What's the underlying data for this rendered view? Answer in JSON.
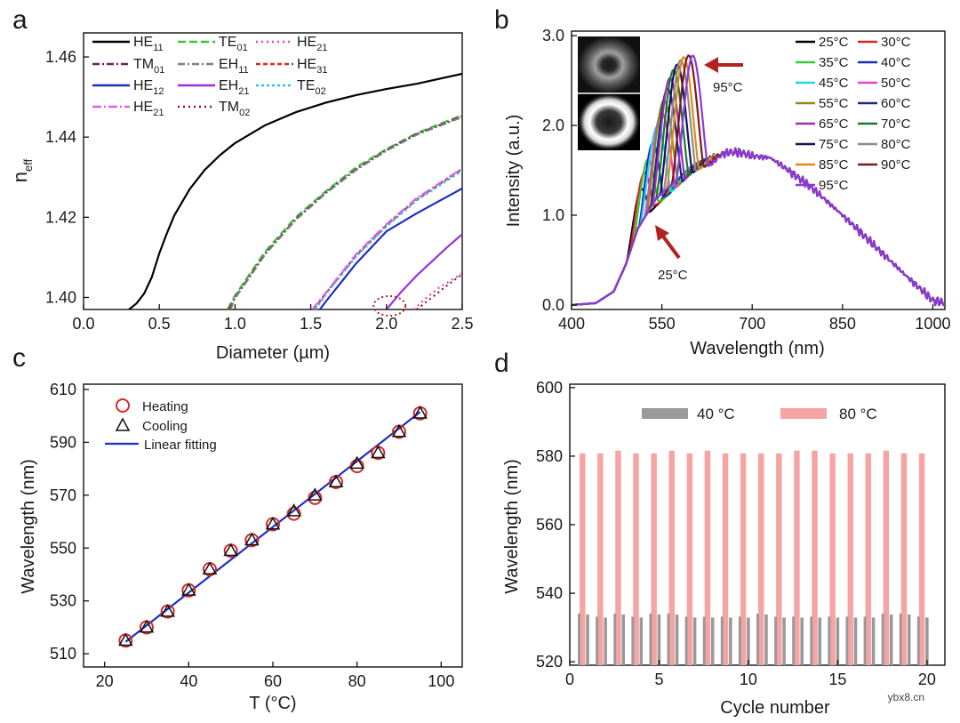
{
  "watermark": "ybx8.cn",
  "chart_data": [
    {
      "panel": "a",
      "type": "line",
      "xlabel": "Diameter (µm)",
      "ylabel_main": "n",
      "ylabel_sub": "eff",
      "xlim": [
        0.0,
        2.5
      ],
      "ylim": [
        1.397,
        1.466
      ],
      "xticks": [
        0.0,
        0.5,
        1.0,
        1.5,
        2.0,
        2.5
      ],
      "xtick_labels": [
        "0.0",
        "0.5",
        "1.0",
        "1.5",
        "2.0",
        "2.5"
      ],
      "yticks": [
        1.4,
        1.42,
        1.44,
        1.46
      ],
      "ytick_labels": [
        "1.40",
        "1.42",
        "1.44",
        "1.46"
      ],
      "annotation": "dotted red circle marking the EH21 cutoff near 2.0 µm",
      "series": [
        {
          "name": "HE",
          "sub": "11",
          "color": "#000000",
          "dash": "",
          "x": [
            0.3,
            0.35,
            0.4,
            0.45,
            0.5,
            0.55,
            0.6,
            0.7,
            0.8,
            0.9,
            1.0,
            1.2,
            1.4,
            1.6,
            1.8,
            2.0,
            2.2,
            2.5
          ],
          "y": [
            1.397,
            1.3985,
            1.401,
            1.405,
            1.411,
            1.416,
            1.4205,
            1.427,
            1.4318,
            1.4355,
            1.4385,
            1.443,
            1.4462,
            1.4486,
            1.4505,
            1.452,
            1.4533,
            1.4558
          ]
        },
        {
          "name": "TE",
          "sub": "01",
          "color": "#33cc33",
          "dash": "9,4",
          "x": [
            0.95,
            1.0,
            1.1,
            1.2,
            1.4,
            1.6,
            1.8,
            2.0,
            2.2,
            2.5
          ],
          "y": [
            1.397,
            1.4005,
            1.406,
            1.4115,
            1.42,
            1.4265,
            1.4325,
            1.437,
            1.441,
            1.4455
          ]
        },
        {
          "name": "HE",
          "sub": "21",
          "color": "#e040e0",
          "dash": "2,4",
          "x": [
            2.18,
            2.25,
            2.35,
            2.5
          ],
          "y": [
            1.397,
            1.3995,
            1.4025,
            1.406
          ]
        },
        {
          "name": "TM",
          "sub": "01",
          "color": "#7a1f5c",
          "dash": "8,3,2,3",
          "x": [
            0.96,
            1.0,
            1.1,
            1.2,
            1.4,
            1.6,
            1.8,
            2.0,
            2.2,
            2.5
          ],
          "y": [
            1.397,
            1.4,
            1.4055,
            1.411,
            1.4195,
            1.4262,
            1.432,
            1.4368,
            1.4408,
            1.4452
          ]
        },
        {
          "name": "EH",
          "sub": "11",
          "color": "#808080",
          "dash": "8,3,2,3",
          "x": [
            0.97,
            1.0,
            1.1,
            1.2,
            1.4,
            1.6,
            1.8,
            2.0,
            2.2,
            2.5
          ],
          "y": [
            1.397,
            1.3998,
            1.4052,
            1.4108,
            1.4193,
            1.426,
            1.4318,
            1.4366,
            1.4406,
            1.445
          ]
        },
        {
          "name": "HE",
          "sub": "31",
          "color": "#d22a2a",
          "dash": "5,3",
          "x": [
            1.52,
            1.6,
            1.8,
            2.0,
            2.2,
            2.5
          ],
          "y": [
            1.397,
            1.401,
            1.4105,
            1.418,
            1.4245,
            1.432
          ]
        },
        {
          "name": "HE",
          "sub": "12",
          "color": "#1c2fbf",
          "dash": "",
          "x": [
            1.56,
            1.6,
            1.8,
            2.0,
            2.2,
            2.5
          ],
          "y": [
            1.397,
            1.399,
            1.4085,
            1.4165,
            1.421,
            1.4272
          ]
        },
        {
          "name": "EH",
          "sub": "21",
          "color": "#9b30d9",
          "dash": "",
          "x": [
            2.0,
            2.1,
            2.2,
            2.3,
            2.4,
            2.5
          ],
          "y": [
            1.397,
            1.4015,
            1.4055,
            1.409,
            1.4125,
            1.4158
          ]
        },
        {
          "name": "TE",
          "sub": "02",
          "color": "#22c8f0",
          "dash": "3,3",
          "x": [
            1.53,
            1.6,
            1.8,
            2.0,
            2.2,
            2.5
          ],
          "y": [
            1.397,
            1.4008,
            1.4102,
            1.4177,
            1.4242,
            1.4316
          ]
        },
        {
          "name": "HE",
          "sub": "21",
          "color": "#e060e0",
          "dash": "10,3,2,3",
          "x": [
            1.51,
            1.6,
            1.8,
            2.0,
            2.2,
            2.5
          ],
          "y": [
            1.397,
            1.4012,
            1.4108,
            1.4183,
            1.4248,
            1.4322
          ]
        },
        {
          "name": "TM",
          "sub": "02",
          "color": "#8b1a1a",
          "dash": "2,4",
          "x": [
            2.2,
            2.3,
            2.4,
            2.5
          ],
          "y": [
            1.397,
            1.4,
            1.403,
            1.4058
          ]
        }
      ]
    },
    {
      "panel": "b",
      "type": "line",
      "xlabel": "Wavelength (nm)",
      "ylabel": "Intensity (a.u.)",
      "xlim": [
        400,
        1020
      ],
      "ylim": [
        -0.05,
        3.05
      ],
      "xticks": [
        400,
        550,
        700,
        850,
        1000
      ],
      "xtick_labels": [
        "400",
        "550",
        "700",
        "850",
        "1000"
      ],
      "yticks": [
        0,
        1,
        2,
        3
      ],
      "ytick_labels": [
        "0.0",
        "1.0",
        "2.0",
        "3.0"
      ],
      "annotation_top": "95°C",
      "annotation_bottom": "25°C",
      "temperatures": [
        25,
        30,
        35,
        40,
        45,
        50,
        55,
        60,
        65,
        70,
        75,
        80,
        85,
        90,
        95
      ],
      "legend_labels": [
        "25°C",
        "30°C",
        "35°C",
        "40°C",
        "45°C",
        "50°C",
        "55°C",
        "60°C",
        "65°C",
        "70°C",
        "75°C",
        "80°C",
        "85°C",
        "90°C",
        "95°C"
      ],
      "colors": [
        "#000000",
        "#d42a2a",
        "#33cc33",
        "#1c2fbf",
        "#22d8e8",
        "#e040e0",
        "#8c8c1a",
        "#1a2a80",
        "#9b30b0",
        "#1a7a2a",
        "#14145a",
        "#8c8c8c",
        "#e08a1a",
        "#7a1a1a",
        "#8a3ad9"
      ],
      "peak_wavelengths": [
        515,
        520,
        526,
        534,
        542,
        549,
        553,
        559,
        563,
        569,
        575,
        581,
        586,
        594,
        601
      ],
      "peak_intensities": [
        1.29,
        1.47,
        1.62,
        1.8,
        1.99,
        2.14,
        2.28,
        2.41,
        2.53,
        2.62,
        2.68,
        2.73,
        2.76,
        2.78,
        2.78
      ],
      "baseline_x": [
        400,
        440,
        470,
        490,
        510,
        540,
        600,
        620,
        660,
        680,
        700,
        730,
        760,
        800,
        850,
        900,
        950,
        1000,
        1020
      ],
      "baseline_y": [
        0.0,
        0.02,
        0.15,
        0.45,
        0.85,
        1.18,
        1.55,
        1.62,
        1.7,
        1.7,
        1.66,
        1.64,
        1.5,
        1.3,
        1.0,
        0.68,
        0.36,
        0.05,
        0.02
      ]
    },
    {
      "panel": "c",
      "type": "scatter",
      "xlabel": "T (°C)",
      "ylabel": "Wavelength (nm)",
      "xlim": [
        15,
        105
      ],
      "ylim": [
        505,
        612
      ],
      "xticks": [
        20,
        40,
        60,
        80,
        100
      ],
      "xtick_labels": [
        "20",
        "40",
        "60",
        "80",
        "100"
      ],
      "yticks": [
        510,
        530,
        550,
        570,
        590,
        610
      ],
      "ytick_labels": [
        "510",
        "530",
        "550",
        "570",
        "590",
        "610"
      ],
      "legend_labels": [
        "Heating",
        "Cooling",
        "Linear fitting"
      ],
      "x": [
        25,
        30,
        35,
        40,
        45,
        50,
        55,
        60,
        65,
        70,
        75,
        80,
        85,
        90,
        95
      ],
      "series": [
        {
          "name": "Heating",
          "values": [
            515,
            520,
            526,
            534,
            542,
            549,
            553,
            559,
            563,
            569,
            575,
            581,
            586,
            594,
            601
          ]
        },
        {
          "name": "Cooling",
          "values": [
            515,
            520,
            526,
            534,
            542,
            549,
            553,
            559,
            564,
            570,
            575,
            582,
            586,
            594,
            601
          ]
        }
      ],
      "fit": {
        "name": "Linear fitting",
        "x": [
          25,
          95
        ],
        "y": [
          514.5,
          601.5
        ]
      }
    },
    {
      "panel": "d",
      "type": "bar",
      "xlabel": "Cycle number",
      "ylabel": "Wavelength (nm)",
      "xlim": [
        0,
        21
      ],
      "ylim": [
        519,
        601
      ],
      "xticks": [
        0,
        5,
        10,
        15,
        20
      ],
      "xtick_labels": [
        "0",
        "5",
        "10",
        "15",
        "20"
      ],
      "yticks": [
        520,
        540,
        560,
        580,
        600
      ],
      "ytick_labels": [
        "520",
        "540",
        "560",
        "580",
        "600"
      ],
      "legend_labels": [
        "40 °C",
        "80 °C"
      ],
      "categories": [
        1,
        2,
        3,
        4,
        5,
        6,
        7,
        8,
        9,
        10,
        11,
        12,
        13,
        14,
        15,
        16,
        17,
        18,
        19,
        20
      ],
      "series": [
        {
          "name": "40 °C",
          "color": "#999999",
          "values": [
            533.8,
            532.9,
            533.8,
            532.9,
            533.8,
            533.8,
            532.9,
            532.9,
            532.9,
            532.9,
            533.8,
            532.9,
            532.9,
            532.9,
            532.9,
            532.9,
            532.9,
            533.8,
            533.8,
            532.9
          ]
        },
        {
          "name": "80 °C",
          "color": "#f5a3a3",
          "values": [
            580.8,
            580.8,
            581.6,
            580.8,
            580.8,
            581.6,
            580.8,
            581.6,
            580.8,
            580.8,
            580.8,
            580.8,
            581.6,
            581.6,
            580.8,
            580.8,
            580.8,
            581.6,
            580.8,
            580.8
          ]
        }
      ]
    }
  ],
  "panels": {
    "a": {
      "letter": "a"
    },
    "b": {
      "letter": "b"
    },
    "c": {
      "letter": "c"
    },
    "d": {
      "letter": "d"
    }
  }
}
